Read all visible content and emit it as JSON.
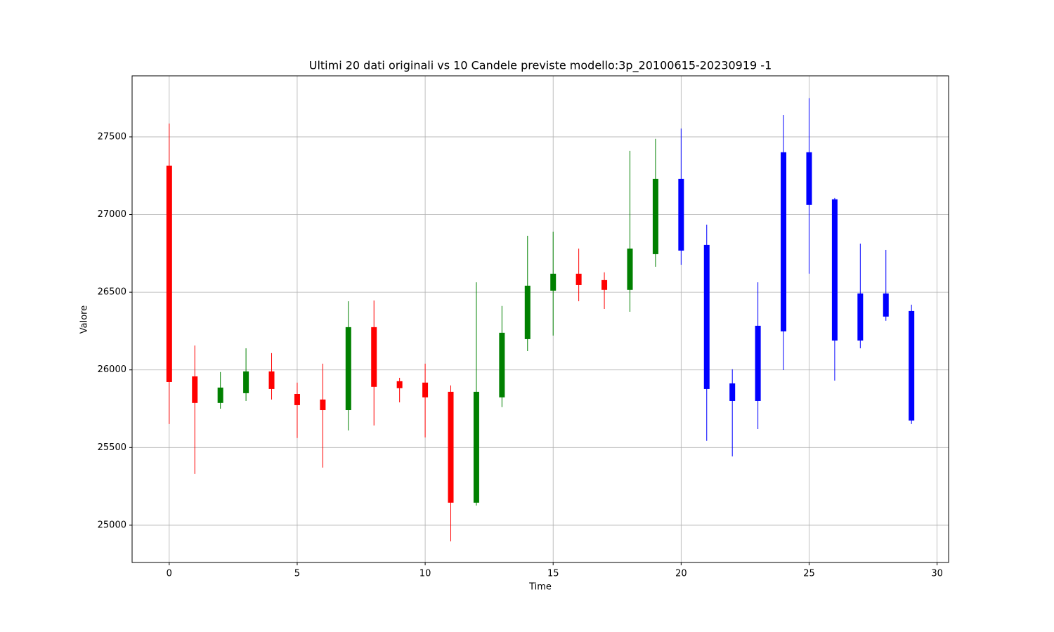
{
  "chart_data": {
    "type": "candlestick",
    "title": "Ultimi 20 dati originali vs 10 Candele previste modello:3p_20100615-20230919 -1",
    "xlabel": "Time",
    "ylabel": "Valore",
    "x": [
      0,
      1,
      2,
      3,
      4,
      5,
      6,
      7,
      8,
      9,
      10,
      11,
      12,
      13,
      14,
      15,
      16,
      17,
      18,
      19,
      20,
      21,
      22,
      23,
      24,
      25,
      26,
      27,
      28,
      29
    ],
    "open": [
      27315,
      25958,
      25787,
      25850,
      25990,
      25845,
      25809,
      25741,
      26275,
      25927,
      25918,
      25859,
      25145,
      25823,
      26198,
      26510,
      26619,
      26578,
      26515,
      26745,
      27229,
      26804,
      25913,
      25800,
      26248,
      27401,
      27098,
      26189,
      26492,
      26379
    ],
    "high": [
      27586,
      26157,
      25986,
      26139,
      26108,
      25918,
      26040,
      26442,
      26447,
      25949,
      26040,
      25900,
      26564,
      26411,
      26863,
      26890,
      26781,
      26628,
      27410,
      27487,
      27554,
      26935,
      26004,
      26564,
      27640,
      27749,
      27107,
      26813,
      26772,
      26420
    ],
    "low": [
      25651,
      25330,
      25750,
      25800,
      25809,
      25561,
      25371,
      25610,
      25642,
      25791,
      25565,
      24896,
      25127,
      25760,
      26121,
      26221,
      26442,
      26392,
      26374,
      26664,
      26677,
      25543,
      25443,
      25619,
      25999,
      26619,
      25931,
      26139,
      26316,
      25651
    ],
    "close": [
      25922,
      25787,
      25886,
      25990,
      25877,
      25773,
      25741,
      26275,
      25891,
      25882,
      25823,
      25145,
      25859,
      26239,
      26542,
      26619,
      26546,
      26515,
      26781,
      27229,
      26768,
      25877,
      25800,
      26284,
      27401,
      27062,
      26189,
      26492,
      26343,
      25674
    ],
    "colors": [
      "red",
      "red",
      "green",
      "green",
      "red",
      "red",
      "red",
      "green",
      "red",
      "red",
      "red",
      "red",
      "green",
      "green",
      "green",
      "green",
      "red",
      "red",
      "green",
      "green",
      "blue",
      "blue",
      "blue",
      "blue",
      "blue",
      "blue",
      "blue",
      "blue",
      "blue",
      "blue"
    ],
    "xlim": [
      -1.45,
      30.45
    ],
    "ylim": [
      24760,
      27893
    ],
    "xticks": [
      0,
      5,
      10,
      15,
      20,
      25,
      30
    ],
    "yticks": [
      25000,
      25500,
      26000,
      26500,
      27000,
      27500
    ],
    "grid": true
  }
}
